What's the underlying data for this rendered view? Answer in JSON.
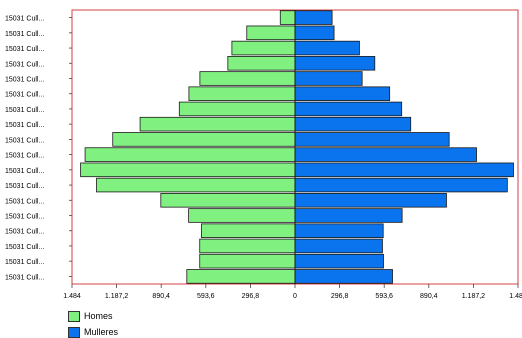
{
  "chart_data": {
    "type": "bar",
    "orientation": "horizontal",
    "categories": [
      "15031 Cull...",
      "15031 Cull...",
      "15031 Cull...",
      "15031 Cull...",
      "15031 Cull...",
      "15031 Cull...",
      "15031 Cull...",
      "15031 Cull...",
      "15031 Cull...",
      "15031 Cull...",
      "15031 Cull...",
      "15031 Cull...",
      "15031 Cull...",
      "15031 Cull...",
      "15031 Cull...",
      "15031 Cull...",
      "15031 Cull...",
      "15031 Cull..."
    ],
    "series": [
      {
        "name": "Homes",
        "color": "#80f080",
        "values": [
          720,
          634,
          634,
          623,
          708,
          893,
          1321,
          1427,
          1397,
          1213,
          1031,
          770,
          706,
          633,
          447,
          420,
          321,
          98
        ]
      },
      {
        "name": "Mulleres",
        "color": "#0a74ee",
        "values": [
          649,
          589,
          582,
          587,
          713,
          1008,
          1413,
          1454,
          1208,
          1026,
          770,
          710,
          630,
          447,
          531,
          429,
          260,
          247
        ]
      }
    ],
    "xlim": [
      -1484,
      1484
    ],
    "xticks": [
      "1.484",
      "1.187,2",
      "890,4",
      "593,6",
      "296,8",
      "0",
      "296,8",
      "593,6",
      "890,4",
      "1.187,2",
      "1.484"
    ],
    "legend": "bottom-left"
  }
}
